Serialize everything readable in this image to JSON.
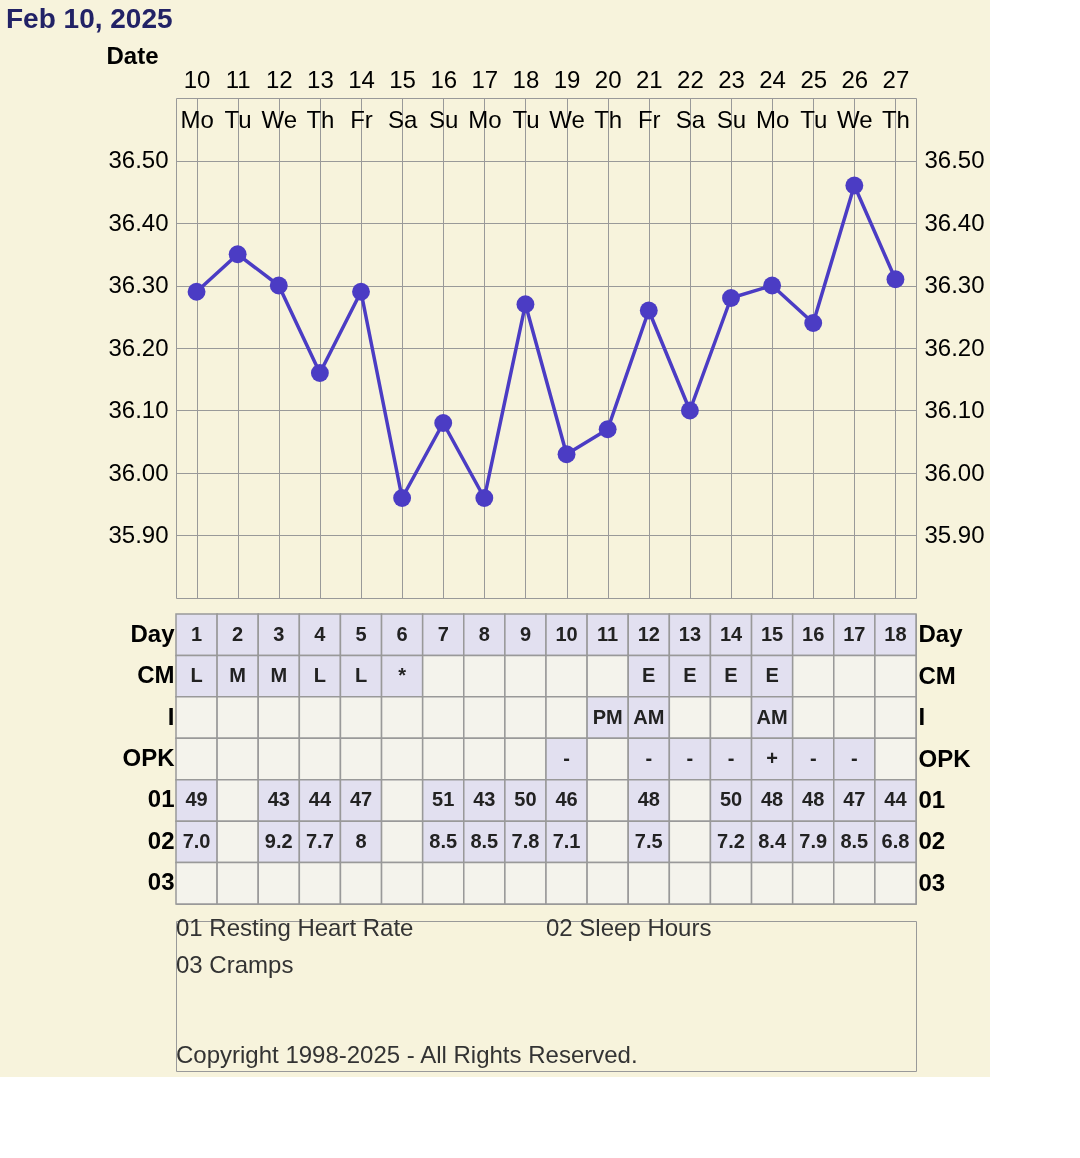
{
  "chart_data": [
    {
      "type": "line",
      "title": "Feb 10, 2025",
      "xlabel": "Date",
      "categories": [
        "10 Mo",
        "11 Tu",
        "12 We",
        "13 Th",
        "14 Fr",
        "15 Sa",
        "16 Su",
        "17 Mo",
        "18 Tu",
        "19 We",
        "20 Th",
        "21 Fr",
        "22 Sa",
        "23 Su",
        "24 Mo",
        "25 Tu",
        "26 We",
        "27 Th"
      ],
      "series": [
        {
          "color": "#4b3cc4",
          "values": [
            36.29,
            36.35,
            36.3,
            36.16,
            36.29,
            35.96,
            36.08,
            35.96,
            36.27,
            36.03,
            36.07,
            36.26,
            36.1,
            36.28,
            36.3,
            36.24,
            36.46,
            36.31
          ]
        }
      ],
      "ylim": [
        35.8,
        36.6
      ],
      "yticks": [
        {
          "value": 35.9,
          "label": "35.90"
        },
        {
          "value": 36.0,
          "label": "36.00"
        },
        {
          "value": 36.1,
          "label": "36.10"
        },
        {
          "value": 36.2,
          "label": "36.20"
        },
        {
          "value": 36.3,
          "label": "36.30"
        },
        {
          "value": 36.4,
          "label": "36.40"
        },
        {
          "value": 36.5,
          "label": "36.50"
        }
      ],
      "y2lim": [
        35.8,
        36.6
      ],
      "y2ticks": [
        {
          "value": 35.9,
          "label": "35.90"
        },
        {
          "value": 36.0,
          "label": "36.00"
        },
        {
          "value": 36.1,
          "label": "36.10"
        },
        {
          "value": 36.2,
          "label": "36.20"
        },
        {
          "value": 36.3,
          "label": "36.30"
        },
        {
          "value": 36.4,
          "label": "36.40"
        },
        {
          "value": 36.5,
          "label": "36.50"
        }
      ],
      "grid": true,
      "marker": "circle",
      "line_style": "solid"
    },
    {
      "type": "heatmap",
      "categories": [
        null,
        null,
        null,
        null,
        null,
        null,
        null,
        null,
        null,
        null,
        null,
        null,
        null,
        null,
        null,
        null,
        null,
        null
      ],
      "y_categories": [
        "Day",
        "CM",
        "I",
        "OPK",
        "01",
        "02",
        "03"
      ],
      "y2_categories": [
        "Day",
        "CM",
        "I",
        "OPK",
        "01",
        "02",
        "03"
      ],
      "cells": [
        [
          null,
          null,
          null,
          null,
          null,
          null,
          null,
          null,
          null,
          null,
          null,
          null,
          null,
          null,
          null,
          null,
          null,
          null
        ],
        [
          null,
          null,
          null,
          null,
          null,
          null,
          null,
          null,
          null,
          null,
          null,
          null,
          null,
          null,
          null,
          null,
          null,
          null
        ],
        [
          null,
          null,
          null,
          null,
          null,
          null,
          null,
          null,
          null,
          null,
          null,
          null,
          null,
          null,
          null,
          null,
          null,
          null
        ],
        [
          null,
          null,
          null,
          null,
          null,
          null,
          null,
          null,
          null,
          null,
          null,
          null,
          null,
          null,
          null,
          null,
          null,
          null
        ],
        [
          null,
          null,
          null,
          null,
          null,
          null,
          null,
          null,
          null,
          null,
          null,
          null,
          null,
          null,
          null,
          null,
          null,
          null
        ],
        [
          null,
          null,
          null,
          null,
          null,
          null,
          null,
          null,
          null,
          null,
          null,
          null,
          null,
          null,
          null,
          null,
          null,
          null
        ],
        [
          null,
          null,
          null,
          null,
          null,
          null,
          null,
          null,
          null,
          null,
          null,
          null,
          null,
          null,
          null,
          null,
          null,
          null
        ]
      ],
      "cell_labels": [
        [
          "1",
          "2",
          "3",
          "4",
          "5",
          "6",
          "7",
          "8",
          "9",
          "10",
          "11",
          "12",
          "13",
          "14",
          "15",
          "16",
          "17",
          "18"
        ],
        [
          "L",
          "M",
          "M",
          "L",
          "L",
          "*",
          null,
          null,
          null,
          null,
          null,
          "E",
          "E",
          "E",
          "E",
          null,
          null,
          null
        ],
        [
          null,
          null,
          null,
          null,
          null,
          null,
          null,
          null,
          null,
          null,
          "PM",
          "AM",
          null,
          null,
          "AM",
          null,
          null,
          null
        ],
        [
          null,
          null,
          null,
          null,
          null,
          null,
          null,
          null,
          null,
          "-",
          null,
          "-",
          "-",
          "-",
          "+",
          "-",
          "-",
          null
        ],
        [
          "49",
          null,
          "43",
          "44",
          "47",
          null,
          "51",
          "43",
          "50",
          "46",
          null,
          "48",
          null,
          "50",
          "48",
          "48",
          "47",
          "44"
        ],
        [
          "7.0",
          null,
          "9.2",
          "7.7",
          "8",
          null,
          "8.5",
          "8.5",
          "7.8",
          "7.1",
          null,
          "7.5",
          null,
          "7.2",
          "8.4",
          "7.9",
          "8.5",
          "6.8"
        ],
        [
          null,
          null,
          null,
          null,
          null,
          null,
          null,
          null,
          null,
          null,
          null,
          null,
          null,
          null,
          null,
          null,
          null,
          null
        ]
      ],
      "annotations": [
        "01 Resting Heart Rate",
        "02 Sleep Hours",
        "03 Cramps",
        "Copyright 1998-2025 - All Rights Reserved."
      ]
    }
  ]
}
